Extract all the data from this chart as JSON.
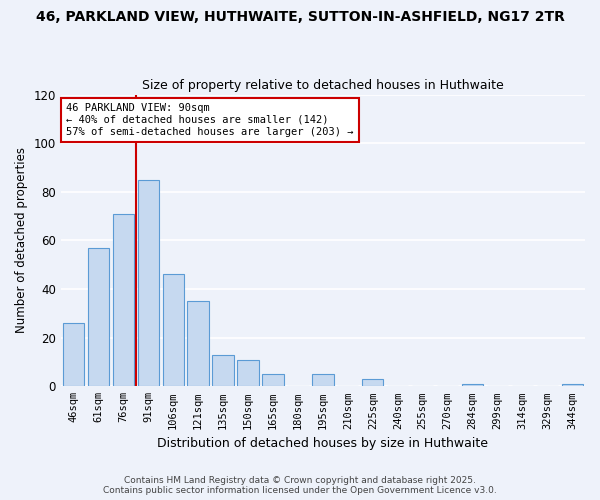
{
  "title_line1": "46, PARKLAND VIEW, HUTHWAITE, SUTTON-IN-ASHFIELD, NG17 2TR",
  "title_line2": "Size of property relative to detached houses in Huthwaite",
  "xlabel": "Distribution of detached houses by size in Huthwaite",
  "ylabel": "Number of detached properties",
  "bar_labels": [
    "46sqm",
    "61sqm",
    "76sqm",
    "91sqm",
    "106sqm",
    "121sqm",
    "135sqm",
    "150sqm",
    "165sqm",
    "180sqm",
    "195sqm",
    "210sqm",
    "225sqm",
    "240sqm",
    "255sqm",
    "270sqm",
    "284sqm",
    "299sqm",
    "314sqm",
    "329sqm",
    "344sqm"
  ],
  "bar_values": [
    26,
    57,
    71,
    85,
    46,
    35,
    13,
    11,
    5,
    0,
    5,
    0,
    3,
    0,
    0,
    0,
    1,
    0,
    0,
    0,
    1
  ],
  "bar_color": "#c6d9f0",
  "bar_edge_color": "#5b9bd5",
  "ylim": [
    0,
    120
  ],
  "yticks": [
    0,
    20,
    40,
    60,
    80,
    100,
    120
  ],
  "vline_x": 2.5,
  "vline_color": "#cc0000",
  "annotation_title": "46 PARKLAND VIEW: 90sqm",
  "annotation_line2": "← 40% of detached houses are smaller (142)",
  "annotation_line3": "57% of semi-detached houses are larger (203) →",
  "annotation_box_color": "#ffffff",
  "annotation_box_edge": "#cc0000",
  "footer_line1": "Contains HM Land Registry data © Crown copyright and database right 2025.",
  "footer_line2": "Contains public sector information licensed under the Open Government Licence v3.0.",
  "background_color": "#eef2fa",
  "grid_color": "#ffffff"
}
